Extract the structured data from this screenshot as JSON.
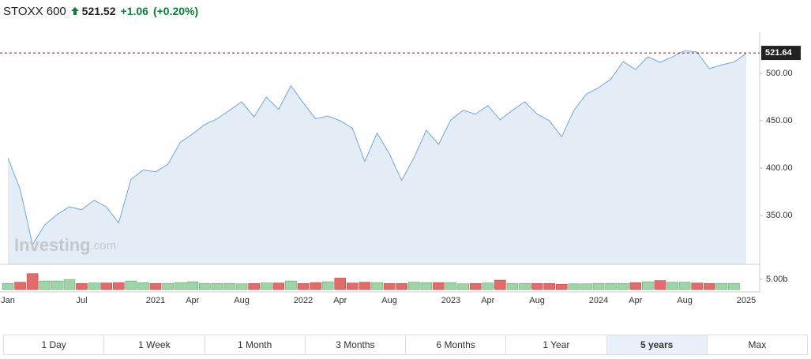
{
  "header": {
    "symbol": "STOXX 600",
    "price": 521.52,
    "change": "+1.06",
    "change_pct": "(+0.20%)"
  },
  "chart_data": {
    "type": "line",
    "categories": [
      "Jan",
      null,
      null,
      null,
      null,
      null,
      "Jul",
      null,
      null,
      null,
      null,
      null,
      "2021",
      null,
      null,
      "Apr",
      null,
      null,
      null,
      "Aug",
      null,
      null,
      null,
      null,
      "2022",
      null,
      null,
      "Apr",
      null,
      null,
      null,
      "Aug",
      null,
      null,
      null,
      null,
      "2023",
      null,
      null,
      "Apr",
      null,
      null,
      null,
      "Aug",
      null,
      null,
      null,
      null,
      "2024",
      null,
      null,
      "Apr",
      null,
      null,
      null,
      "Aug",
      null,
      null,
      null,
      null,
      "2025"
    ],
    "values": [
      410.8,
      377.5,
      319,
      340,
      351,
      359,
      356,
      366,
      359,
      342,
      388,
      398,
      396,
      404,
      427,
      436,
      446,
      452,
      461,
      470,
      454,
      475,
      462,
      487,
      469,
      452,
      455,
      450,
      442,
      407,
      437,
      415,
      387,
      411,
      440,
      425,
      451,
      461,
      457,
      466,
      451,
      461,
      470,
      457,
      450,
      433,
      461,
      478,
      485,
      494,
      512.5,
      504,
      517.5,
      511.7,
      517.5,
      524,
      522.5,
      505,
      509,
      512,
      521
    ],
    "color": "#6fa8dc",
    "fill": "#e4edf6",
    "ylim": [
      298.3,
      544.2
    ],
    "yticks": [
      {
        "value": 350,
        "label": "350.00"
      },
      {
        "value": 400,
        "label": "400.00"
      },
      {
        "value": 450,
        "label": "450.00"
      },
      {
        "value": 500,
        "label": "500.00"
      }
    ],
    "reference": 521.64,
    "watermark": [
      "Investing",
      ".com"
    ],
    "volume": {
      "values": [
        3.0,
        3.6,
        7.8,
        4.2,
        4.2,
        4.8,
        3.0,
        3.2,
        3.2,
        3.4,
        4.2,
        3.4,
        3.0,
        3.0,
        3.4,
        3.8,
        3.0,
        3.0,
        3.0,
        2.8,
        3.0,
        3.2,
        3.2,
        4.2,
        3.0,
        3.4,
        3.8,
        5.6,
        3.2,
        3.6,
        3.4,
        3.0,
        3.0,
        3.6,
        3.4,
        3.4,
        3.4,
        2.8,
        3.0,
        3.2,
        4.6,
        3.0,
        3.0,
        3.0,
        3.0,
        2.6,
        2.8,
        2.8,
        3.0,
        3.0,
        3.0,
        3.4,
        3.8,
        4.4,
        3.6,
        3.6,
        3.2,
        3.0,
        3.0,
        3.0,
        null
      ],
      "ylim": [
        0,
        10.4
      ],
      "yticks": [
        {
          "value": 5,
          "label": "5.00b"
        }
      ],
      "up_color": "#9fd3a8",
      "down_color": "#e06c6c"
    }
  },
  "range_buttons": [
    "1 Day",
    "1 Week",
    "1 Month",
    "3 Months",
    "6 Months",
    "1 Year",
    "5 years",
    "Max"
  ],
  "selected_range": 6
}
